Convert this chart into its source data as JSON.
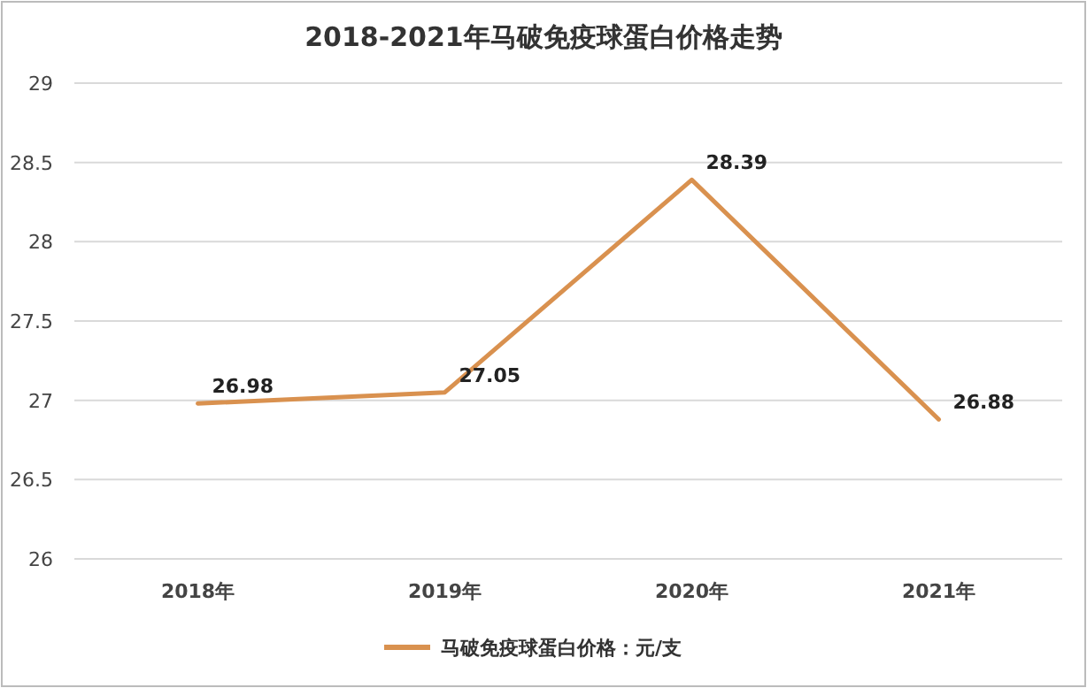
{
  "chart_data": {
    "type": "line",
    "title": "2018-2021年马破免疫球蛋白价格走势",
    "categories": [
      "2018年",
      "2019年",
      "2020年",
      "2021年"
    ],
    "series": [
      {
        "name": "马破免疫球蛋白价格：元/支",
        "color": "#d9914f",
        "values": [
          26.98,
          27.05,
          28.39,
          26.88
        ]
      }
    ],
    "ylim": [
      26,
      29
    ],
    "yticks": [
      26,
      26.5,
      27,
      27.5,
      28,
      28.5,
      29
    ],
    "grid": "y",
    "legend": "bottom",
    "data_labels": true,
    "marker": "none",
    "line_style": "solid"
  }
}
